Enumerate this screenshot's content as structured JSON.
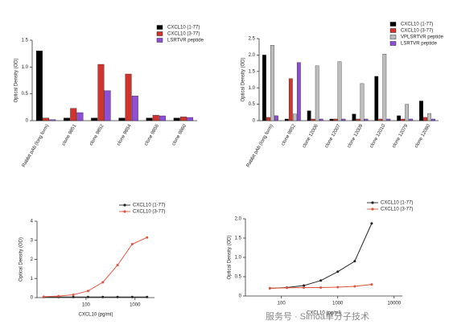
{
  "chart_data": [
    {
      "type": "bar",
      "ylabel": "Optical Density (OD)",
      "categories": [
        "Rabbit pAb (long form)",
        "clone 9851",
        "clone 9852",
        "clone 9854",
        "clone 9856",
        "clone 9860"
      ],
      "series": [
        {
          "name": "CXCL10 (1-77)",
          "color": "#000000",
          "values": [
            1.3,
            0.05,
            0.05,
            0.05,
            0.05,
            0.05
          ]
        },
        {
          "name": "CXCL10 (3-77)",
          "color": "#d0342c",
          "values": [
            0.05,
            0.23,
            1.05,
            0.87,
            0.1,
            0.07
          ]
        },
        {
          "name": "LSRTVR peptide",
          "color": "#8e4fd6",
          "values": [
            0.02,
            0.15,
            0.56,
            0.46,
            0.09,
            0.06
          ]
        }
      ],
      "ylim": [
        0,
        1.5
      ],
      "yticks": [
        0,
        0.5,
        {
          "value": 1,
          "label": "1.0"
        },
        1.5
      ],
      "legend": "top-right"
    },
    {
      "type": "bar",
      "ylabel": "Optical Density (OD)",
      "categories": [
        "Rabbit pAb (long form)",
        "clone 9852",
        "clone 12006",
        "clone 12007",
        "clone 12009",
        "clone 12010",
        "clone 12079",
        "clone 12080"
      ],
      "series": [
        {
          "name": "CXCL10 (1-77)",
          "color": "#000000",
          "values": [
            2.0,
            0.05,
            0.3,
            0.05,
            0.2,
            1.35,
            0.15,
            0.6
          ]
        },
        {
          "name": "CXCL10 (3-77)",
          "color": "#d0342c",
          "values": [
            0.1,
            1.28,
            0.05,
            0.05,
            0.05,
            0.05,
            0.05,
            0.1
          ]
        },
        {
          "name": "VPLSRTVR peptide",
          "color": "#bdbdbd",
          "values": [
            2.3,
            0.2,
            1.67,
            1.8,
            1.13,
            2.03,
            0.5,
            0.22
          ]
        },
        {
          "name": "LSRTVR peptide",
          "color": "#8e4fd6",
          "values": [
            0.15,
            1.77,
            0.05,
            0.05,
            0.05,
            0.05,
            0.05,
            0.05
          ]
        }
      ],
      "ylim": [
        0,
        2.5
      ],
      "yticks": [
        0,
        0.5,
        {
          "value": 1,
          "label": "1.0"
        },
        1.5,
        {
          "value": 2,
          "label": "2.0"
        },
        2.5
      ],
      "legend": "top-right"
    },
    {
      "type": "line",
      "ylabel": "Optical Density (OD)",
      "xlabel": "CXCL10 (pg/ml)",
      "xlog": true,
      "x": [
        13.7,
        27.5,
        55,
        110,
        220,
        440,
        880,
        1760
      ],
      "series": [
        {
          "name": "CXCL10 (1-77)",
          "color": "#222222",
          "values": [
            0.03,
            0.03,
            0.03,
            0.03,
            0.03,
            0.03,
            0.03,
            0.03
          ]
        },
        {
          "name": "CXCL10 (3-77)",
          "color": "#e0533c",
          "values": [
            0.05,
            0.08,
            0.15,
            0.35,
            0.8,
            1.7,
            2.8,
            3.15
          ]
        }
      ],
      "xlim": [
        10,
        2500
      ],
      "xticks": [
        100,
        1000
      ],
      "ylim": [
        0,
        4
      ],
      "yticks": [
        0,
        1,
        2,
        3,
        4
      ],
      "legend": "top-right"
    },
    {
      "type": "line",
      "ylabel": "Optical Density (OD)",
      "xlabel": "CXCL10 (pg/ml)",
      "xlog": true,
      "x": [
        62.5,
        125,
        250,
        500,
        1000,
        2000,
        4000
      ],
      "series": [
        {
          "name": "CXCL10 (1-77)",
          "color": "#222222",
          "values": [
            0.2,
            0.22,
            0.27,
            0.4,
            0.63,
            0.9,
            1.88
          ]
        },
        {
          "name": "CXCL10 (3-77)",
          "color": "#e0533c",
          "values": [
            0.2,
            0.21,
            0.22,
            0.22,
            0.23,
            0.25,
            0.3
          ]
        }
      ],
      "xlim": [
        23,
        14000
      ],
      "xticks": [
        100,
        1000,
        10000
      ],
      "ylim": [
        0,
        2
      ],
      "yticks": [
        0,
        0.5,
        {
          "value": 1,
          "label": "1.0"
        },
        1.5,
        {
          "value": 2,
          "label": "2.0"
        }
      ],
      "legend": "top-right"
    }
  ],
  "watermark": "服务号 · Simoa单分子技术"
}
